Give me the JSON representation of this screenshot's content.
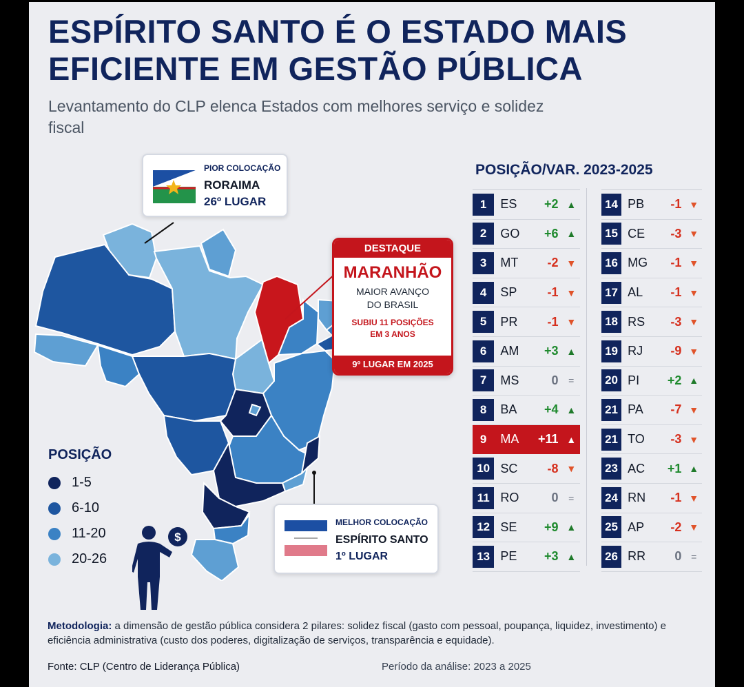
{
  "title": "ESPÍRITO SANTO É O ESTADO MAIS EFICIENTE EM GESTÃO PÚBLICA",
  "subtitle": "Levantamento do CLP elenca Estados com melhores serviço e solidez fiscal",
  "worst": {
    "caption": "PIOR COLOCAÇÃO",
    "state": "RORAIMA",
    "rank": "26º LUGAR",
    "icon": "roraima-flag-icon"
  },
  "highlight": {
    "header": "DESTAQUE",
    "state": "MARANHÃO",
    "desc_line1": "MAIOR AVANÇO",
    "desc_line2": "DO BRASIL",
    "sub_line1": "SUBIU 11 POSIÇÕES",
    "sub_line2": "EM 3 ANOS",
    "footer": "9º LUGAR EM 2025"
  },
  "best": {
    "caption": "MELHOR COLOCAÇÃO",
    "state": "ESPÍRITO SANTO",
    "rank": "1º LUGAR",
    "icon": "espirito-santo-flag-icon"
  },
  "legend": {
    "title": "POSIÇÃO",
    "items": [
      {
        "label": "1-5",
        "color": "#10245c"
      },
      {
        "label": "6-10",
        "color": "#1e56a0"
      },
      {
        "label": "11-20",
        "color": "#3b82c4"
      },
      {
        "label": "20-26",
        "color": "#7ab3dc"
      }
    ]
  },
  "table": {
    "header": "POSIÇÃO/VAR. 2023-2025",
    "col1": [
      {
        "pos": "1",
        "uf": "ES",
        "var": "+2",
        "dir": "up"
      },
      {
        "pos": "2",
        "uf": "GO",
        "var": "+6",
        "dir": "up"
      },
      {
        "pos": "3",
        "uf": "MT",
        "var": "-2",
        "dir": "down"
      },
      {
        "pos": "4",
        "uf": "SP",
        "var": "-1",
        "dir": "down"
      },
      {
        "pos": "5",
        "uf": "PR",
        "var": "-1",
        "dir": "down"
      },
      {
        "pos": "6",
        "uf": "AM",
        "var": "+3",
        "dir": "up"
      },
      {
        "pos": "7",
        "uf": "MS",
        "var": "0",
        "dir": "eq"
      },
      {
        "pos": "8",
        "uf": "BA",
        "var": "+4",
        "dir": "up"
      },
      {
        "pos": "9",
        "uf": "MA",
        "var": "+11",
        "dir": "up",
        "highlight": true
      },
      {
        "pos": "10",
        "uf": "SC",
        "var": "-8",
        "dir": "down"
      },
      {
        "pos": "11",
        "uf": "RO",
        "var": "0",
        "dir": "eq"
      },
      {
        "pos": "12",
        "uf": "SE",
        "var": "+9",
        "dir": "up"
      },
      {
        "pos": "13",
        "uf": "PE",
        "var": "+3",
        "dir": "up"
      }
    ],
    "col2": [
      {
        "pos": "14",
        "uf": "PB",
        "var": "-1",
        "dir": "down"
      },
      {
        "pos": "15",
        "uf": "CE",
        "var": "-3",
        "dir": "down"
      },
      {
        "pos": "16",
        "uf": "MG",
        "var": "-1",
        "dir": "down"
      },
      {
        "pos": "17",
        "uf": "AL",
        "var": "-1",
        "dir": "down"
      },
      {
        "pos": "18",
        "uf": "RS",
        "var": "-3",
        "dir": "down"
      },
      {
        "pos": "19",
        "uf": "RJ",
        "var": "-9",
        "dir": "down"
      },
      {
        "pos": "20",
        "uf": "PI",
        "var": "+2",
        "dir": "up"
      },
      {
        "pos": "21",
        "uf": "PA",
        "var": "-7",
        "dir": "down"
      },
      {
        "pos": "21",
        "uf": "TO",
        "var": "-3",
        "dir": "down"
      },
      {
        "pos": "23",
        "uf": "AC",
        "var": "+1",
        "dir": "up"
      },
      {
        "pos": "24",
        "uf": "RN",
        "var": "-1",
        "dir": "down"
      },
      {
        "pos": "25",
        "uf": "AP",
        "var": "-2",
        "dir": "down"
      },
      {
        "pos": "26",
        "uf": "RR",
        "var": "0",
        "dir": "eq"
      }
    ]
  },
  "methodology": {
    "label": "Metodologia:",
    "text": " a dimensão de gestão pública considera 2 pilares: solidez fiscal (gasto com pessoal, poupança, liquidez, investimento) e eficiência administrativa (custo dos poderes, digitalização de serviços, transparência e equidade)."
  },
  "source": "Fonte: CLP (Centro de Liderança Pública)",
  "period": "Período da análise:  2023 a 2025",
  "colors": {
    "navy": "#10245c",
    "red": "#c4151c",
    "up": "#1f8a2e",
    "down": "#d6301e"
  }
}
